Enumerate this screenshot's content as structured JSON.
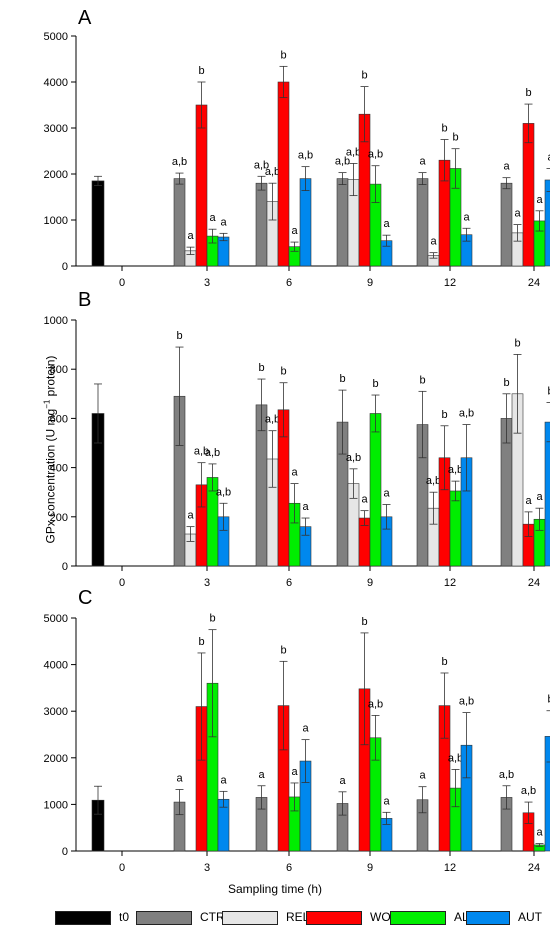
{
  "chart_data": [
    {
      "type": "bar",
      "panel_label": "A",
      "categories": [
        "0",
        "3",
        "6",
        "9",
        "12",
        "24"
      ],
      "ylim": [
        0,
        5000
      ],
      "yticks": [
        "0",
        "1000",
        "2000",
        "3000",
        "4000",
        "5000"
      ],
      "series": [
        {
          "name": "t0",
          "values": [
            1850,
            null,
            null,
            null,
            null,
            null
          ],
          "errors": [
            100,
            null,
            null,
            null,
            null,
            null
          ],
          "letters": [
            "",
            "",
            "",
            "",
            "",
            ""
          ]
        },
        {
          "name": "CTR",
          "values": [
            null,
            1900,
            1800,
            1900,
            1900,
            1800
          ],
          "errors": [
            null,
            120,
            150,
            130,
            130,
            120
          ],
          "letters": [
            "",
            "a,b",
            "a,b",
            "a,b",
            "a",
            "a"
          ]
        },
        {
          "name": "REL",
          "values": [
            null,
            330,
            1400,
            1880,
            230,
            720
          ],
          "errors": [
            null,
            80,
            400,
            350,
            60,
            180
          ],
          "letters": [
            "",
            "a",
            "a,b",
            "a,b",
            "a",
            "a"
          ]
        },
        {
          "name": "WOU",
          "values": [
            null,
            3500,
            4000,
            3300,
            2300,
            3100
          ],
          "errors": [
            null,
            500,
            340,
            600,
            450,
            420
          ],
          "letters": [
            "",
            "b",
            "b",
            "b",
            "b",
            "b"
          ]
        },
        {
          "name": "ALL",
          "values": [
            null,
            650,
            420,
            1780,
            2120,
            980
          ],
          "errors": [
            null,
            150,
            100,
            400,
            430,
            220
          ],
          "letters": [
            "",
            "a",
            "a",
            "a,b",
            "b",
            "a"
          ]
        },
        {
          "name": "AUT",
          "values": [
            null,
            630,
            1900,
            550,
            680,
            1870
          ],
          "errors": [
            null,
            80,
            260,
            120,
            140,
            250
          ],
          "letters": [
            "",
            "a",
            "a,b",
            "a",
            "a",
            "a"
          ]
        }
      ]
    },
    {
      "type": "bar",
      "panel_label": "B",
      "categories": [
        "0",
        "3",
        "6",
        "9",
        "12",
        "24"
      ],
      "ylim": [
        0,
        1000
      ],
      "yticks": [
        "0",
        "200",
        "400",
        "600",
        "800",
        "1000"
      ],
      "series": [
        {
          "name": "t0",
          "values": [
            620,
            null,
            null,
            null,
            null,
            null
          ],
          "errors": [
            120,
            null,
            null,
            null,
            null,
            null
          ],
          "letters": [
            "",
            "",
            "",
            "",
            "",
            ""
          ]
        },
        {
          "name": "CTR",
          "values": [
            null,
            690,
            655,
            585,
            575,
            600
          ],
          "errors": [
            null,
            200,
            105,
            130,
            135,
            100
          ],
          "letters": [
            "",
            "b",
            "b",
            "b",
            "b",
            "b"
          ]
        },
        {
          "name": "REL",
          "values": [
            null,
            130,
            435,
            335,
            235,
            700
          ],
          "errors": [
            null,
            30,
            115,
            60,
            65,
            160
          ],
          "letters": [
            "",
            "a",
            "a,b",
            "a,b",
            "a,b",
            "b"
          ]
        },
        {
          "name": "WOU",
          "values": [
            null,
            330,
            635,
            195,
            440,
            170
          ],
          "errors": [
            null,
            90,
            110,
            30,
            130,
            50
          ],
          "letters": [
            "",
            "a,b",
            "b",
            "a",
            "b",
            "a"
          ]
        },
        {
          "name": "ALL",
          "values": [
            null,
            360,
            255,
            620,
            305,
            190
          ],
          "errors": [
            null,
            55,
            80,
            75,
            40,
            45
          ],
          "letters": [
            "",
            "a,b",
            "a",
            "b",
            "a,b",
            "a"
          ]
        },
        {
          "name": "AUT",
          "values": [
            null,
            200,
            160,
            200,
            440,
            585
          ],
          "errors": [
            null,
            55,
            35,
            50,
            135,
            80
          ],
          "letters": [
            "",
            "a,b",
            "a",
            "a",
            "a,b",
            "b"
          ]
        }
      ]
    },
    {
      "type": "bar",
      "panel_label": "C",
      "categories": [
        "0",
        "3",
        "6",
        "9",
        "12",
        "24"
      ],
      "ylim": [
        0,
        5000
      ],
      "yticks": [
        "0",
        "1000",
        "2000",
        "3000",
        "4000",
        "5000"
      ],
      "series": [
        {
          "name": "t0",
          "values": [
            1090,
            null,
            null,
            null,
            null,
            null
          ],
          "errors": [
            300,
            null,
            null,
            null,
            null,
            null
          ],
          "letters": [
            "",
            "",
            "",
            "",
            "",
            ""
          ]
        },
        {
          "name": "CTR",
          "values": [
            null,
            1050,
            1150,
            1020,
            1100,
            1150
          ],
          "errors": [
            null,
            270,
            250,
            250,
            280,
            250
          ],
          "letters": [
            "",
            "a",
            "a",
            "a",
            "a",
            "a,b"
          ]
        },
        {
          "name": "REL",
          "values": [
            null,
            null,
            null,
            null,
            null,
            null
          ],
          "errors": [
            null,
            null,
            null,
            null,
            null,
            null
          ],
          "letters": [
            "",
            "",
            "",
            "",
            "",
            ""
          ]
        },
        {
          "name": "WOU",
          "values": [
            null,
            3100,
            3120,
            3480,
            3120,
            820
          ],
          "errors": [
            null,
            1150,
            950,
            1200,
            700,
            230
          ],
          "letters": [
            "",
            "b",
            "b",
            "b",
            "b",
            "a,b"
          ]
        },
        {
          "name": "ALL",
          "values": [
            null,
            3600,
            1160,
            2430,
            1350,
            130
          ],
          "errors": [
            null,
            1150,
            300,
            480,
            400,
            30
          ],
          "letters": [
            "",
            "b",
            "a",
            "a,b",
            "a,b",
            "a"
          ]
        },
        {
          "name": "AUT",
          "values": [
            null,
            1110,
            1930,
            700,
            2270,
            2460
          ],
          "errors": [
            null,
            170,
            460,
            130,
            700,
            550
          ],
          "letters": [
            "",
            "a",
            "a",
            "a",
            "a,b",
            "b"
          ]
        }
      ]
    }
  ],
  "colors": {
    "t0": "#000000",
    "CTR": "#808080",
    "REL": "#e6e6e6",
    "WOU": "#ff0000",
    "ALL": "#00ee00",
    "AUT": "#0088ee"
  },
  "ylabel_main": "GPx concentration (U mg",
  "ylabel_sup": "−1",
  "ylabel_end": " protein)",
  "xlabel": "Sampling time (h)",
  "legend": [
    "t0",
    "CTR",
    "REL",
    "WOU",
    "ALL",
    "AUT"
  ]
}
